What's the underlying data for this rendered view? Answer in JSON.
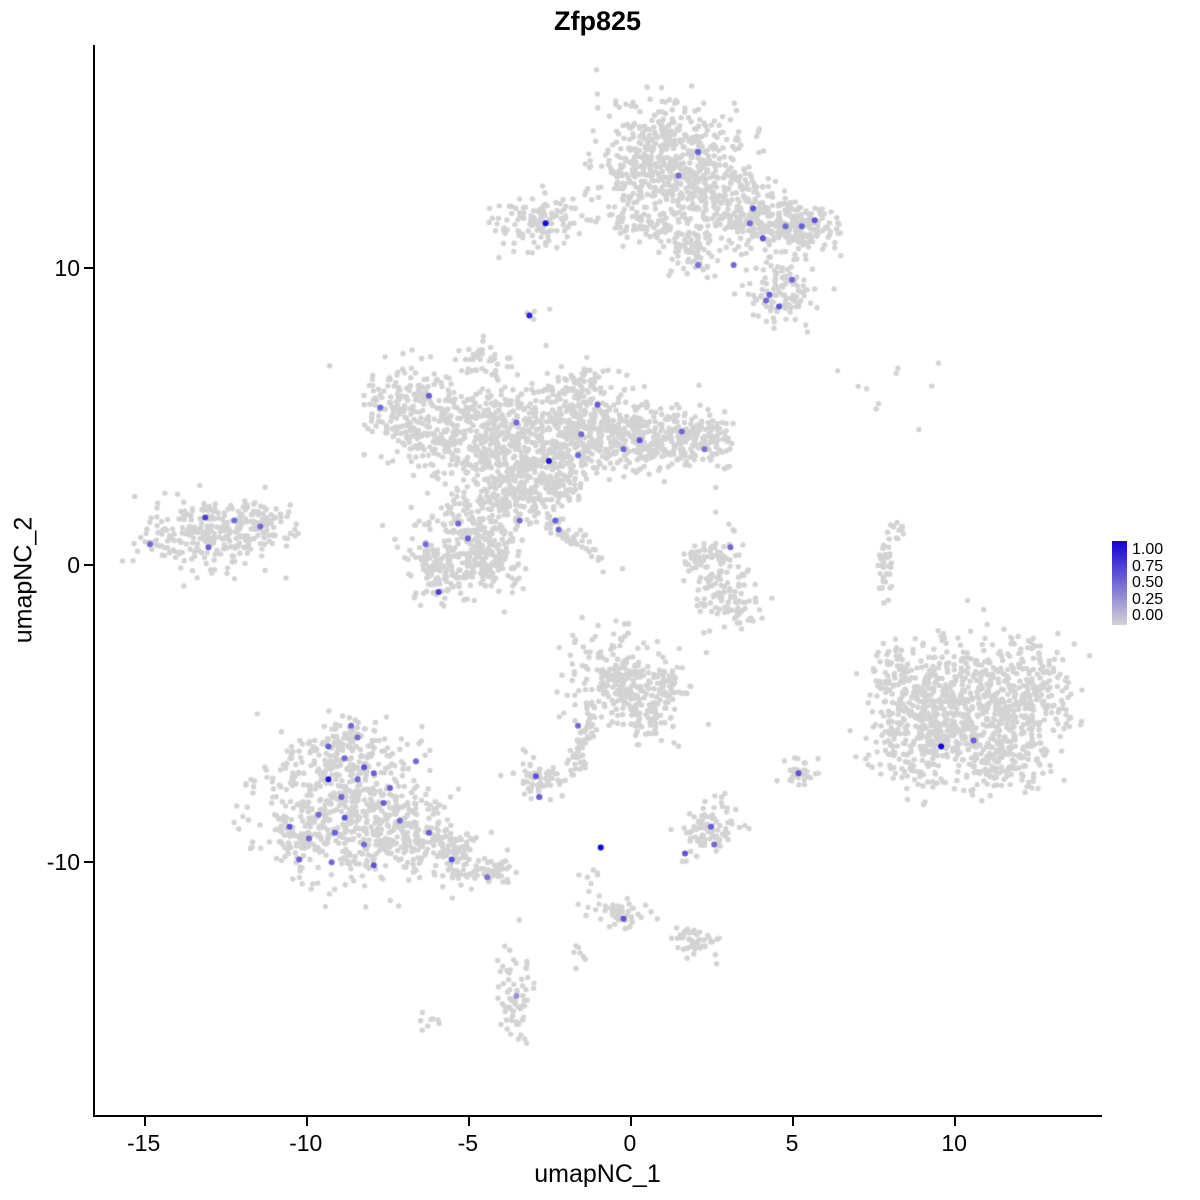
{
  "title": "Zfp825",
  "axes": {
    "x_label": "umapNC_1",
    "y_label": "umapNC_2"
  },
  "legend": {
    "labels": [
      "1.00",
      "0.75",
      "0.50",
      "0.25",
      "0.00"
    ],
    "high_color": "#1500d8",
    "low_color": "#d3d3d3"
  },
  "chart_data": {
    "type": "scatter",
    "title": "Zfp825",
    "xlabel": "umapNC_1",
    "ylabel": "umapNC_2",
    "xlim": [
      -16.5,
      14.5
    ],
    "ylim": [
      -18.5,
      17.5
    ],
    "x_ticks": [
      -15,
      -10,
      -5,
      0,
      5,
      10
    ],
    "x_tick_labels": [
      "-15",
      "-10",
      "-5",
      "0",
      "5",
      "10"
    ],
    "y_ticks": [
      10,
      0,
      -10
    ],
    "y_tick_labels": [
      "10",
      "0",
      "-10"
    ],
    "grid": false,
    "legend_position": "right",
    "point_color_low": "#d3d3d3",
    "point_color_high": "#0d00d8",
    "background_clusters": [
      {
        "x": 1.3,
        "y": 13.8,
        "sx": 1.05,
        "sy": 0.95,
        "n": 420
      },
      {
        "x": 2.5,
        "y": 12.4,
        "sx": 0.85,
        "sy": 0.7,
        "n": 200
      },
      {
        "x": 0.2,
        "y": 12.9,
        "sx": 0.6,
        "sy": 0.6,
        "n": 90
      },
      {
        "x": 3.6,
        "y": 11.8,
        "sx": 0.7,
        "sy": 0.5,
        "n": 130
      },
      {
        "x": 4.7,
        "y": 11.4,
        "sx": 0.55,
        "sy": 0.45,
        "n": 110
      },
      {
        "x": 5.5,
        "y": 11.4,
        "sx": 0.5,
        "sy": 0.4,
        "n": 90
      },
      {
        "x": 0.6,
        "y": 11.4,
        "sx": 0.95,
        "sy": 0.3,
        "n": 90
      },
      {
        "x": 1.9,
        "y": 10.5,
        "sx": 0.4,
        "sy": 0.45,
        "n": 60
      },
      {
        "x": 4.8,
        "y": 9.2,
        "sx": 0.55,
        "sy": 0.55,
        "n": 110
      },
      {
        "x": -2.9,
        "y": 11.6,
        "sx": 0.7,
        "sy": 0.5,
        "n": 120
      },
      {
        "x": -3.1,
        "y": 8.5,
        "sx": 0.18,
        "sy": 0.18,
        "n": 4
      },
      {
        "x": 8.3,
        "y": 6.3,
        "sx": 1.2,
        "sy": 0.9,
        "n": 10
      },
      {
        "x": -6.9,
        "y": 5.6,
        "sx": 0.75,
        "sy": 0.6,
        "n": 150
      },
      {
        "x": -6.3,
        "y": 4.3,
        "sx": 0.5,
        "sy": 0.45,
        "n": 70
      },
      {
        "x": -4.6,
        "y": 7.0,
        "sx": 0.3,
        "sy": 0.3,
        "n": 35
      },
      {
        "x": -4.4,
        "y": 4.6,
        "sx": 1.15,
        "sy": 0.95,
        "n": 360
      },
      {
        "x": -2.9,
        "y": 3.8,
        "sx": 0.95,
        "sy": 0.75,
        "n": 280
      },
      {
        "x": -1.2,
        "y": 4.7,
        "sx": 0.9,
        "sy": 0.75,
        "n": 260
      },
      {
        "x": -1.5,
        "y": 6.0,
        "sx": 0.5,
        "sy": 0.4,
        "n": 70
      },
      {
        "x": 0.3,
        "y": 4.3,
        "sx": 0.75,
        "sy": 0.55,
        "n": 170
      },
      {
        "x": 1.7,
        "y": 4.4,
        "sx": 0.65,
        "sy": 0.5,
        "n": 110
      },
      {
        "x": 2.5,
        "y": 4.2,
        "sx": 0.4,
        "sy": 0.55,
        "n": 70
      },
      {
        "x": -3.7,
        "y": 2.5,
        "sx": 0.7,
        "sy": 0.55,
        "n": 140
      },
      {
        "x": -2.3,
        "y": 2.7,
        "sx": 0.5,
        "sy": 0.4,
        "n": 80
      },
      {
        "x": -1.9,
        "y": 1.0,
        "sx": 0.85,
        "sy": 0.14,
        "n": 60,
        "rot": -38
      },
      {
        "x": -4.9,
        "y": 1.0,
        "sx": 0.85,
        "sy": 0.85,
        "n": 250
      },
      {
        "x": -5.8,
        "y": -0.3,
        "sx": 0.55,
        "sy": 0.5,
        "n": 110
      },
      {
        "x": -4.3,
        "y": 0.0,
        "sx": 0.5,
        "sy": 0.5,
        "n": 90
      },
      {
        "x": -13.1,
        "y": 1.0,
        "sx": 1.0,
        "sy": 0.6,
        "n": 240
      },
      {
        "x": -11.6,
        "y": 1.5,
        "sx": 0.55,
        "sy": 0.4,
        "n": 80
      },
      {
        "x": 2.8,
        "y": -0.4,
        "sx": 0.5,
        "sy": 0.7,
        "n": 110
      },
      {
        "x": 3.3,
        "y": -1.5,
        "sx": 0.35,
        "sy": 0.3,
        "n": 35
      },
      {
        "x": 2.2,
        "y": 0.3,
        "sx": 0.3,
        "sy": 0.3,
        "n": 30
      },
      {
        "x": 7.9,
        "y": -0.2,
        "sx": 0.12,
        "sy": 0.7,
        "n": 40
      },
      {
        "x": 8.3,
        "y": 1.2,
        "sx": 0.1,
        "sy": 0.25,
        "n": 10
      },
      {
        "x": 10.6,
        "y": -4.8,
        "sx": 1.4,
        "sy": 1.2,
        "n": 620
      },
      {
        "x": 9.0,
        "y": -5.9,
        "sx": 0.8,
        "sy": 0.8,
        "n": 200
      },
      {
        "x": 8.3,
        "y": -4.0,
        "sx": 0.5,
        "sy": 0.6,
        "n": 80
      },
      {
        "x": 12.3,
        "y": -4.2,
        "sx": 0.6,
        "sy": 0.8,
        "n": 140
      },
      {
        "x": 11.5,
        "y": -6.6,
        "sx": 0.7,
        "sy": 0.5,
        "n": 120
      },
      {
        "x": -0.4,
        "y": -3.9,
        "sx": 0.75,
        "sy": 0.75,
        "n": 240
      },
      {
        "x": 0.5,
        "y": -5.0,
        "sx": 0.5,
        "sy": 0.45,
        "n": 80
      },
      {
        "x": 1.2,
        "y": -4.1,
        "sx": 0.3,
        "sy": 0.35,
        "n": 40
      },
      {
        "x": -1.4,
        "y": -5.9,
        "sx": 0.6,
        "sy": 0.14,
        "n": 50,
        "rot": 72
      },
      {
        "x": -2.8,
        "y": -7.2,
        "sx": 0.4,
        "sy": 0.38,
        "n": 60
      },
      {
        "x": -8.6,
        "y": -8.3,
        "sx": 1.4,
        "sy": 1.15,
        "n": 560
      },
      {
        "x": -8.8,
        "y": -6.3,
        "sx": 0.75,
        "sy": 0.55,
        "n": 140
      },
      {
        "x": -6.4,
        "y": -9.3,
        "sx": 0.75,
        "sy": 0.55,
        "n": 150
      },
      {
        "x": -5.2,
        "y": -9.9,
        "sx": 0.45,
        "sy": 0.38,
        "n": 70
      },
      {
        "x": -4.2,
        "y": -10.3,
        "sx": 0.3,
        "sy": 0.28,
        "n": 35
      },
      {
        "x": -10.3,
        "y": -9.0,
        "sx": 0.4,
        "sy": 0.5,
        "n": 60
      },
      {
        "x": 5.2,
        "y": -7.0,
        "sx": 0.28,
        "sy": 0.24,
        "n": 30
      },
      {
        "x": 2.5,
        "y": -8.9,
        "sx": 0.5,
        "sy": 0.42,
        "n": 85
      },
      {
        "x": -1.2,
        "y": -10.7,
        "sx": 0.2,
        "sy": 0.45,
        "n": 10
      },
      {
        "x": -0.3,
        "y": -11.7,
        "sx": 0.5,
        "sy": 0.25,
        "n": 45
      },
      {
        "x": 2.1,
        "y": -12.6,
        "sx": 0.45,
        "sy": 0.28,
        "n": 45
      },
      {
        "x": -3.6,
        "y": -14.3,
        "sx": 0.28,
        "sy": 0.75,
        "n": 65
      },
      {
        "x": -6.1,
        "y": -15.4,
        "sx": 0.22,
        "sy": 0.14,
        "n": 8
      },
      {
        "x": -1.5,
        "y": -13.2,
        "sx": 0.12,
        "sy": 0.25,
        "n": 7
      }
    ],
    "expressing_cells": [
      {
        "x": -2.6,
        "y": 11.5,
        "value": 0.95
      },
      {
        "x": 2.1,
        "y": 13.9,
        "value": 0.55
      },
      {
        "x": 1.5,
        "y": 13.1,
        "value": 0.5
      },
      {
        "x": 3.8,
        "y": 12.0,
        "value": 0.6
      },
      {
        "x": 3.7,
        "y": 11.5,
        "value": 0.5
      },
      {
        "x": 4.1,
        "y": 11.0,
        "value": 0.6
      },
      {
        "x": 4.8,
        "y": 11.4,
        "value": 0.5
      },
      {
        "x": 5.3,
        "y": 11.4,
        "value": 0.55
      },
      {
        "x": 5.7,
        "y": 11.6,
        "value": 0.6
      },
      {
        "x": 3.2,
        "y": 10.1,
        "value": 0.5
      },
      {
        "x": 2.1,
        "y": 10.1,
        "value": 0.45
      },
      {
        "x": 5.0,
        "y": 9.6,
        "value": 0.5
      },
      {
        "x": 4.3,
        "y": 9.1,
        "value": 0.55
      },
      {
        "x": 4.6,
        "y": 8.7,
        "value": 0.6
      },
      {
        "x": 4.2,
        "y": 8.9,
        "value": 0.5
      },
      {
        "x": -3.1,
        "y": 8.4,
        "value": 0.85
      },
      {
        "x": -7.7,
        "y": 5.3,
        "value": 0.5
      },
      {
        "x": -6.2,
        "y": 5.7,
        "value": 0.55
      },
      {
        "x": -3.5,
        "y": 4.8,
        "value": 0.5
      },
      {
        "x": -1.0,
        "y": 5.4,
        "value": 0.55
      },
      {
        "x": -1.5,
        "y": 4.4,
        "value": 0.5
      },
      {
        "x": 0.3,
        "y": 4.2,
        "value": 0.6
      },
      {
        "x": 1.6,
        "y": 4.5,
        "value": 0.5
      },
      {
        "x": 2.3,
        "y": 3.9,
        "value": 0.45
      },
      {
        "x": -2.5,
        "y": 3.5,
        "value": 0.9
      },
      {
        "x": -1.6,
        "y": 3.7,
        "value": 0.5
      },
      {
        "x": -0.2,
        "y": 3.9,
        "value": 0.5
      },
      {
        "x": -5.3,
        "y": 1.4,
        "value": 0.5
      },
      {
        "x": -5.0,
        "y": 0.9,
        "value": 0.55
      },
      {
        "x": -3.4,
        "y": 1.5,
        "value": 0.5
      },
      {
        "x": -2.3,
        "y": 1.5,
        "value": 0.55
      },
      {
        "x": -2.2,
        "y": 1.2,
        "value": 0.5
      },
      {
        "x": -5.9,
        "y": -0.9,
        "value": 0.7
      },
      {
        "x": -6.3,
        "y": 0.7,
        "value": 0.5
      },
      {
        "x": -14.8,
        "y": 0.7,
        "value": 0.5
      },
      {
        "x": -13.1,
        "y": 1.6,
        "value": 0.7
      },
      {
        "x": -13.0,
        "y": 0.6,
        "value": 0.55
      },
      {
        "x": -12.2,
        "y": 1.5,
        "value": 0.5
      },
      {
        "x": -11.4,
        "y": 1.3,
        "value": 0.5
      },
      {
        "x": 3.1,
        "y": 0.6,
        "value": 0.5
      },
      {
        "x": 9.6,
        "y": -6.1,
        "value": 1.0
      },
      {
        "x": 10.6,
        "y": -5.9,
        "value": 0.55
      },
      {
        "x": -1.6,
        "y": -5.4,
        "value": 0.5
      },
      {
        "x": -2.9,
        "y": -7.1,
        "value": 0.6
      },
      {
        "x": -2.8,
        "y": -7.8,
        "value": 0.55
      },
      {
        "x": -8.6,
        "y": -5.4,
        "value": 0.5
      },
      {
        "x": -9.3,
        "y": -6.1,
        "value": 0.55
      },
      {
        "x": -8.8,
        "y": -6.5,
        "value": 0.5
      },
      {
        "x": -8.2,
        "y": -6.8,
        "value": 0.6
      },
      {
        "x": -7.9,
        "y": -7.0,
        "value": 0.55
      },
      {
        "x": -9.3,
        "y": -7.2,
        "value": 0.9
      },
      {
        "x": -8.4,
        "y": -7.2,
        "value": 0.5
      },
      {
        "x": -7.6,
        "y": -8.0,
        "value": 0.55
      },
      {
        "x": -9.6,
        "y": -8.4,
        "value": 0.5
      },
      {
        "x": -8.8,
        "y": -8.5,
        "value": 0.6
      },
      {
        "x": -10.5,
        "y": -8.8,
        "value": 0.6
      },
      {
        "x": -9.9,
        "y": -9.2,
        "value": 0.5
      },
      {
        "x": -9.1,
        "y": -9.0,
        "value": 0.55
      },
      {
        "x": -8.2,
        "y": -9.4,
        "value": 0.5
      },
      {
        "x": -10.2,
        "y": -9.9,
        "value": 0.55
      },
      {
        "x": -9.2,
        "y": -10.0,
        "value": 0.5
      },
      {
        "x": -7.9,
        "y": -10.1,
        "value": 0.6
      },
      {
        "x": -6.2,
        "y": -9.0,
        "value": 0.55
      },
      {
        "x": -5.5,
        "y": -9.9,
        "value": 0.6
      },
      {
        "x": -8.4,
        "y": -5.8,
        "value": 0.5
      },
      {
        "x": -7.4,
        "y": -7.5,
        "value": 0.55
      },
      {
        "x": -8.9,
        "y": -7.8,
        "value": 0.5
      },
      {
        "x": -7.1,
        "y": -8.6,
        "value": 0.5
      },
      {
        "x": -6.6,
        "y": -6.6,
        "value": 0.5
      },
      {
        "x": -4.4,
        "y": -10.5,
        "value": 0.45
      },
      {
        "x": 5.2,
        "y": -7.0,
        "value": 0.6
      },
      {
        "x": 1.7,
        "y": -9.7,
        "value": 0.6
      },
      {
        "x": 2.5,
        "y": -8.8,
        "value": 0.55
      },
      {
        "x": 2.6,
        "y": -9.4,
        "value": 0.5
      },
      {
        "x": -0.9,
        "y": -9.5,
        "value": 1.0
      },
      {
        "x": -0.2,
        "y": -11.9,
        "value": 0.6
      },
      {
        "x": -3.5,
        "y": -14.5,
        "value": 0.3
      }
    ]
  }
}
